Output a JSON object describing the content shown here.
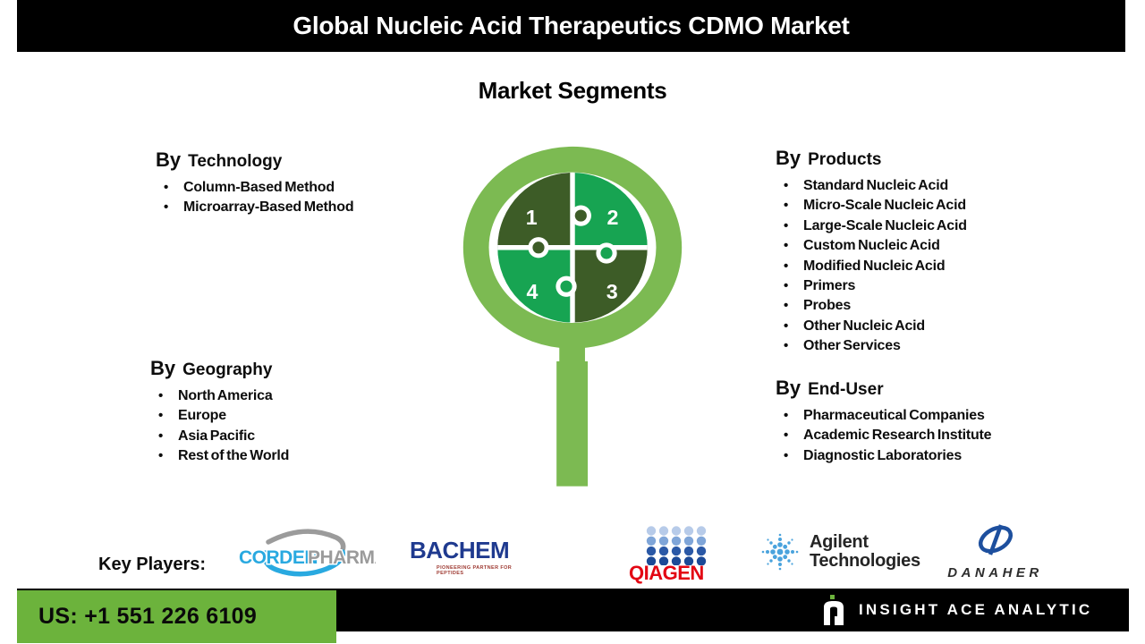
{
  "header": {
    "title": "Global Nucleic Acid Therapeutics CDMO Market"
  },
  "subtitle": "Market Segments",
  "sections": {
    "technology": {
      "prefix": "By",
      "name": "Technology",
      "items": [
        "Column-Based Method",
        "Microarray-Based Method"
      ]
    },
    "geography": {
      "prefix": "By",
      "name": "Geography",
      "items": [
        "North America",
        "Europe",
        "Asia Pacific",
        "Rest of the World"
      ]
    },
    "products": {
      "prefix": "By",
      "name": "Products",
      "items": [
        "Standard Nucleic Acid",
        "Micro-Scale Nucleic Acid",
        "Large-Scale Nucleic Acid",
        "Custom Nucleic Acid",
        "Modified Nucleic Acid",
        "Primers",
        "Probes",
        "Other Nucleic Acid",
        "Other Services"
      ]
    },
    "end_user": {
      "prefix": "By",
      "name": "End-User",
      "items": [
        "Pharmaceutical Companies",
        "Academic Research Institute",
        "Diagnostic Laboratories"
      ]
    }
  },
  "puzzle": {
    "piece_labels": [
      "1",
      "2",
      "3",
      "4"
    ],
    "colors": {
      "ring_green": "#7cba52",
      "medium_green": "#17a452",
      "dark_green": "#3d5c27"
    }
  },
  "key_players": {
    "label": "Key Players:",
    "logos": {
      "corden": {
        "part1": "CORDEN",
        "part2": "PHARMA",
        "blue": "#29a9e0",
        "gray": "#9b9b9b"
      },
      "bachem": {
        "name": "BACHEM",
        "tagline": "PIONEERING PARTNER FOR PEPTIDES"
      },
      "qiagen": {
        "name": "QIAGEN",
        "red": "#e30613"
      },
      "agilent": {
        "line1": "Agilent",
        "line2": "Technologies"
      },
      "danaher": {
        "name": "DANAHER"
      }
    }
  },
  "footer": {
    "phone": "US: +1 551 226 6109",
    "brand": "INSIGHT ACE ANALYTIC",
    "colors": {
      "phone_box_green": "#6cb33c",
      "bar_black": "#000000"
    }
  }
}
